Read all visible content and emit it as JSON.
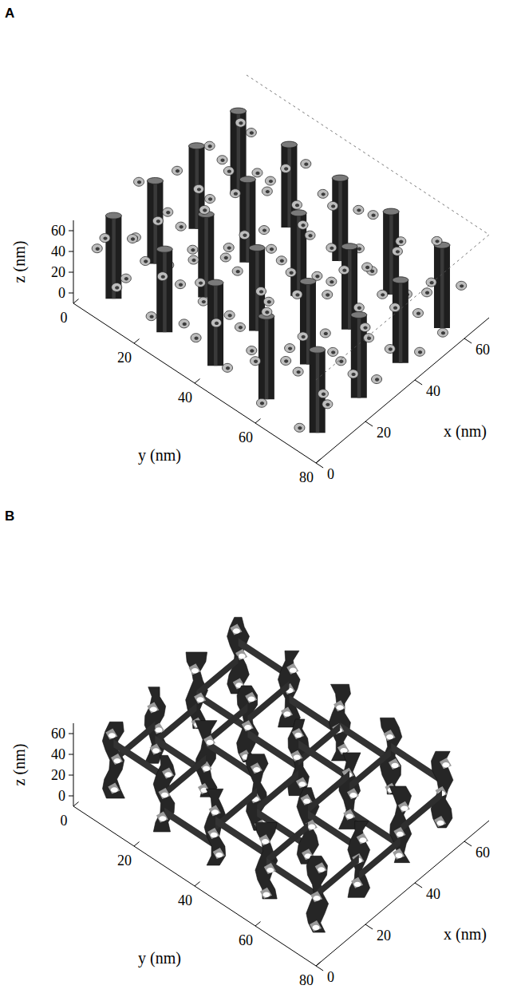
{
  "chart_data": [
    {
      "type": "isosurface",
      "title": "A",
      "xlabel": "x (nm)",
      "ylabel": "y (nm)",
      "zlabel": "z (nm)",
      "xlim": [
        0,
        70
      ],
      "ylim": [
        0,
        80
      ],
      "zlim": [
        -10,
        70
      ],
      "xticks": [
        0,
        20,
        40,
        60
      ],
      "yticks": [
        0,
        20,
        40,
        60,
        80
      ],
      "zticks": [
        0,
        20,
        40,
        60
      ]
    },
    {
      "type": "isosurface",
      "title": "B",
      "xlabel": "x (nm)",
      "ylabel": "y (nm)",
      "zlabel": "z (nm)",
      "xlim": [
        0,
        70
      ],
      "ylim": [
        0,
        80
      ],
      "zlim": [
        -10,
        70
      ],
      "xticks": [
        0,
        20,
        40,
        60
      ],
      "yticks": [
        0,
        20,
        40,
        60,
        80
      ],
      "zticks": [
        0,
        20,
        40,
        60
      ]
    }
  ]
}
